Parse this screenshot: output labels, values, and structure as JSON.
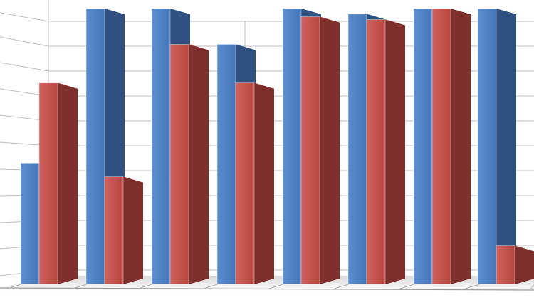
{
  "chart_data": {
    "type": "bar",
    "variant": "3d-clustered-column",
    "grid": true,
    "legend": "none",
    "categories": [
      "",
      "",
      "",
      "",
      "",
      "",
      "",
      ""
    ],
    "series": [
      {
        "values": [
          44,
          100,
          100,
          87,
          100,
          98,
          100,
          100
        ],
        "color": "#4F81BD"
      },
      {
        "values": [
          73,
          39,
          87,
          73,
          97,
          96,
          100,
          14
        ],
        "color": "#C0504D"
      }
    ],
    "ylim": [
      0,
      100
    ]
  }
}
